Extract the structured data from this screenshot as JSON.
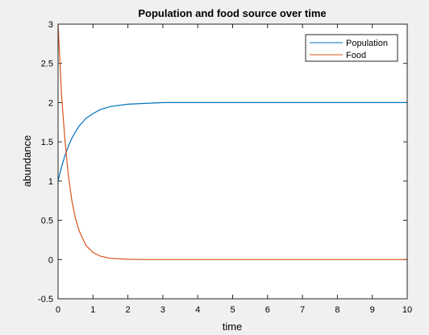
{
  "chart_data": {
    "type": "line",
    "title": "Population and food source over time",
    "xlabel": "time",
    "ylabel": "abundance",
    "xlim": [
      0,
      10
    ],
    "ylim": [
      -0.5,
      3
    ],
    "xticks": [
      "0",
      "1",
      "2",
      "3",
      "4",
      "5",
      "6",
      "7",
      "8",
      "9",
      "10"
    ],
    "yticks": [
      "-0.5",
      "0",
      "0.5",
      "1",
      "1.5",
      "2",
      "2.5",
      "3"
    ],
    "grid": false,
    "legend_position": "top-right",
    "x": [
      0,
      0.1,
      0.2,
      0.3,
      0.4,
      0.5,
      0.6,
      0.8,
      1.0,
      1.2,
      1.5,
      2.0,
      2.5,
      3.0,
      4.0,
      5.0,
      6.0,
      7.0,
      8.0,
      9.0,
      10.0
    ],
    "series": [
      {
        "name": "Population",
        "color": "#0072bd",
        "values": [
          1.0,
          1.18,
          1.33,
          1.45,
          1.55,
          1.63,
          1.7,
          1.8,
          1.86,
          1.91,
          1.95,
          1.98,
          1.99,
          2.0,
          2.0,
          2.0,
          2.0,
          2.0,
          2.0,
          2.0,
          2.0
        ]
      },
      {
        "name": "Food",
        "color": "#d95319",
        "values": [
          3.0,
          2.1,
          1.5,
          1.05,
          0.74,
          0.52,
          0.37,
          0.18,
          0.09,
          0.045,
          0.015,
          0.003,
          0.0,
          0.0,
          0.0,
          0.0,
          0.0,
          0.0,
          0.0,
          0.0,
          0.0
        ]
      }
    ]
  }
}
